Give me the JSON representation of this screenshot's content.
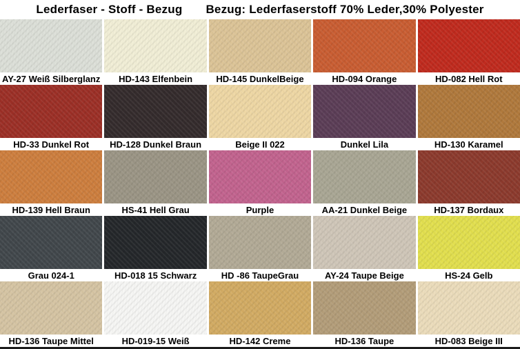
{
  "header": {
    "title_left": "Lederfaser  - Stoff - Bezug",
    "title_right": "Bezug: Lederfaserstoff 70% Leder,30% Polyester"
  },
  "swatches": [
    {
      "label": "AY-27 Weiß Silberglanz",
      "color": "#dcdfd8"
    },
    {
      "label": "HD-143 Elfenbein",
      "color": "#f1eed6"
    },
    {
      "label": "HD-145 DunkelBeige",
      "color": "#dcc497"
    },
    {
      "label": "HD-094 Orange",
      "color": "#c95d32"
    },
    {
      "label": "HD-082 Hell Rot",
      "color": "#c02a1e"
    },
    {
      "label": "HD-33 Dunkel Rot",
      "color": "#9c2f26"
    },
    {
      "label": "HD-128 Dunkel Braun",
      "color": "#342b2c"
    },
    {
      "label": "Beige II 022",
      "color": "#eed7a4"
    },
    {
      "label": "Dunkel Lila",
      "color": "#5b3d56"
    },
    {
      "label": "HD-130 Karamel",
      "color": "#b0793c"
    },
    {
      "label": "HD-139 Hell Braun",
      "color": "#cd7e3e"
    },
    {
      "label": "HS-41 Hell Grau",
      "color": "#9b9585"
    },
    {
      "label": "Purple",
      "color": "#c2638e"
    },
    {
      "label": "AA-21 Dunkel Beige",
      "color": "#a9a694"
    },
    {
      "label": "HD-137 Bordaux",
      "color": "#8c3a2d"
    },
    {
      "label": "Grau 024-1",
      "color": "#41474b"
    },
    {
      "label": "HD-018 15 Schwarz",
      "color": "#24272a"
    },
    {
      "label": "HD -86 TaupeGrau",
      "color": "#b2aa96"
    },
    {
      "label": "AY-24 Taupe Beige",
      "color": "#cfc6b8"
    },
    {
      "label": "HS-24 Gelb",
      "color": "#e2df4e"
    },
    {
      "label": "HD-136 Taupe Mittel",
      "color": "#d5c4a3"
    },
    {
      "label": "HD-019-15 Weiß",
      "color": "#f6f6f4"
    },
    {
      "label": "HD-142 Creme",
      "color": "#d2ab63"
    },
    {
      "label": "HD-136 Taupe",
      "color": "#b39d79"
    },
    {
      "label": "HD-083 Beige III",
      "color": "#ebdcbb"
    }
  ]
}
